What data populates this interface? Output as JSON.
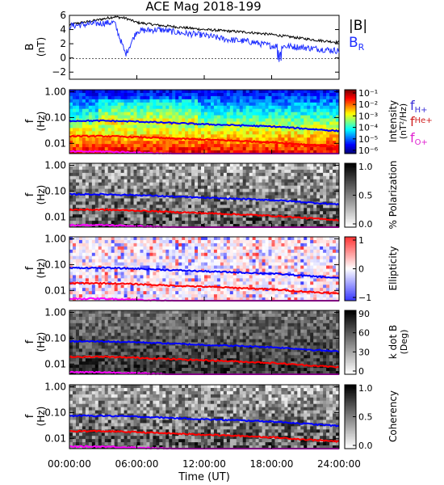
{
  "title": "ACE Mag 2018-199",
  "colors": {
    "btotal": "#000000",
    "br": "#1f2fff",
    "fH": "#0000ff",
    "fHe": "#ff0000",
    "fO": "#ff00ff",
    "label_H": "#3a2fd8",
    "label_He": "#d02020",
    "label_O": "#e020d0"
  },
  "x_axis": {
    "label": "Time (UT)",
    "ticks": [
      "00:00:00",
      "06:00:00",
      "12:00:00",
      "18:00:00",
      "24:00:00"
    ],
    "range_hours": [
      0,
      24
    ]
  },
  "panels": {
    "mag": {
      "ylabel": "B",
      "yunit": "(nT)",
      "ticks": [
        "6",
        "4",
        "2",
        "0",
        "−2"
      ],
      "legend_total": "|B|",
      "legend_br": "B",
      "legend_br_sub": "R"
    },
    "intensity": {
      "ylabel": "f",
      "yunit": "(Hz)",
      "ticks": [
        "1.00",
        "0.10",
        "0.01"
      ],
      "cbar_label": "Intensity",
      "cbar_unit": "(nT²/Hz)",
      "cbar_ticks": [
        "10⁻¹",
        "10⁻²",
        "10⁻³",
        "10⁻⁴",
        "10⁻⁵",
        "10⁻⁶"
      ],
      "legend_fH": "f",
      "legend_fH_sub": "H+",
      "legend_fHe": "f",
      "legend_fHe_sub": "He+",
      "legend_fO": "f",
      "legend_fO_sub": "O+"
    },
    "polarization": {
      "ylabel": "f",
      "yunit": "(Hz)",
      "ticks": [
        "1.00",
        "0.10",
        "0.01"
      ],
      "cbar_label": "% Polarization",
      "cbar_ticks": [
        "1.0",
        "0.5",
        "0.0"
      ]
    },
    "ellipticity": {
      "ylabel": "f",
      "yunit": "(Hz)",
      "ticks": [
        "1.00",
        "0.10",
        "0.01"
      ],
      "cbar_label": "Ellipticity",
      "cbar_ticks": [
        "1",
        "0",
        "−1"
      ]
    },
    "kdotb": {
      "ylabel": "f",
      "yunit": "(Hz)",
      "ticks": [
        "1.00",
        "0.10",
        "0.01"
      ],
      "cbar_label": "k dot B",
      "cbar_unit": "(Deg)",
      "cbar_ticks": [
        "90",
        "60",
        "30",
        "0"
      ]
    },
    "coherency": {
      "ylabel": "f",
      "yunit": "(Hz)",
      "ticks": [
        "1.00",
        "0.10",
        "0.01"
      ],
      "cbar_label": "Coherency",
      "cbar_ticks": [
        "1.0",
        "0.5",
        "0.0"
      ]
    }
  },
  "chart_data": [
    {
      "type": "line",
      "title": "ACE Mag 2018-199",
      "xlabel": "Time (UT)",
      "ylabel": "B (nT)",
      "ylim": [
        -3,
        6
      ],
      "x": [
        0,
        2,
        4,
        5,
        6,
        8,
        10,
        12,
        14,
        16,
        18,
        20,
        22,
        24
      ],
      "series": [
        {
          "name": "|B|",
          "values": [
            4.7,
            5.2,
            5.8,
            5.6,
            5.0,
            4.6,
            4.3,
            4.0,
            3.8,
            3.6,
            3.3,
            2.9,
            2.5,
            2.2
          ]
        },
        {
          "name": "B_R",
          "values": [
            4.5,
            4.8,
            5.0,
            0.5,
            3.8,
            4.0,
            3.5,
            3.2,
            2.6,
            2.3,
            1.7,
            1.6,
            1.3,
            1.0
          ]
        }
      ]
    },
    {
      "type": "heatmap",
      "title": "",
      "xlabel": "Time (UT)",
      "ylabel": "f (Hz)",
      "yscale": "log",
      "ylim": [
        0.004,
        1.2
      ],
      "colorbar": "Intensity (nT²/Hz)",
      "x": [
        0,
        3,
        6,
        9,
        12,
        15,
        18,
        21,
        24
      ],
      "series": [
        {
          "name": "fH+",
          "values": [
            0.075,
            0.075,
            0.07,
            0.062,
            0.055,
            0.05,
            0.045,
            0.037,
            0.03
          ]
        },
        {
          "name": "fHe+",
          "values": [
            0.019,
            0.019,
            0.0175,
            0.0155,
            0.014,
            0.0125,
            0.011,
            0.009,
            0.0075
          ]
        },
        {
          "name": "fO+",
          "values": [
            0.0048,
            0.0048,
            0.0044,
            0.0039,
            0.0035,
            0.0031,
            0.0028,
            0.0024,
            0.002
          ]
        }
      ]
    }
  ]
}
